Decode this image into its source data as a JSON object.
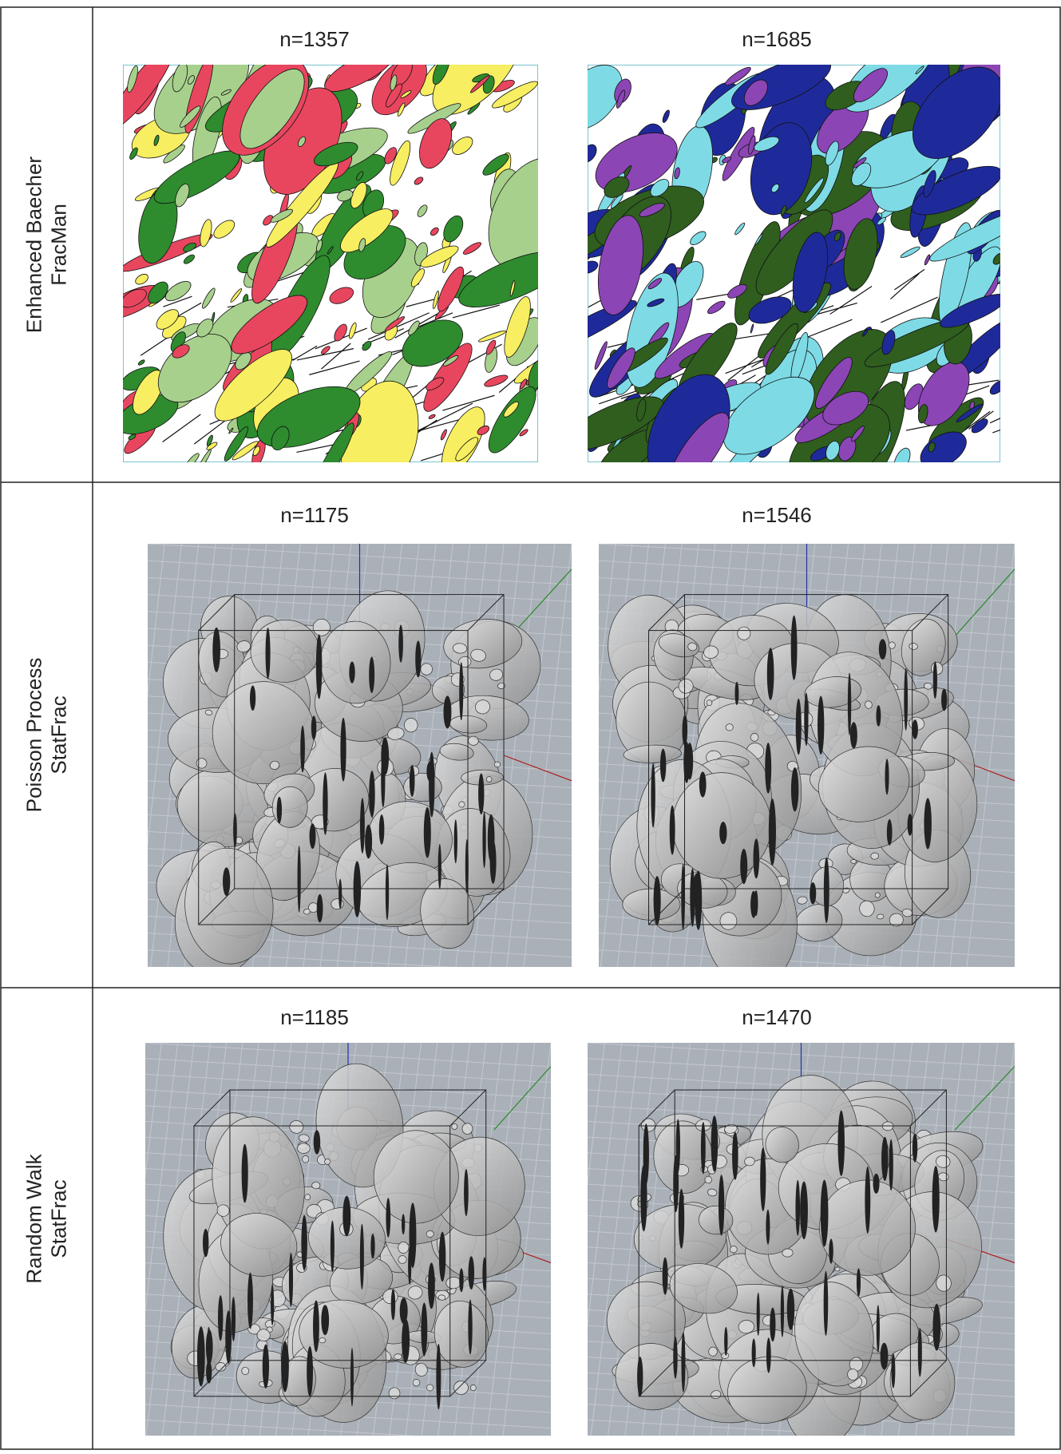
{
  "rows": [
    {
      "label": [
        "Enhanced Baecher",
        "FracMan"
      ],
      "panels": [
        {
          "caption": "n=1357"
        },
        {
          "caption": "n=1685"
        }
      ]
    },
    {
      "label": [
        "Poisson Process",
        "StatFrac"
      ],
      "panels": [
        {
          "caption": "n=1175"
        },
        {
          "caption": "n=1546"
        }
      ]
    },
    {
      "label": [
        "Random Walk",
        "StatFrac"
      ],
      "panels": [
        {
          "caption": "n=1185"
        },
        {
          "caption": "n=1470"
        }
      ]
    }
  ]
}
